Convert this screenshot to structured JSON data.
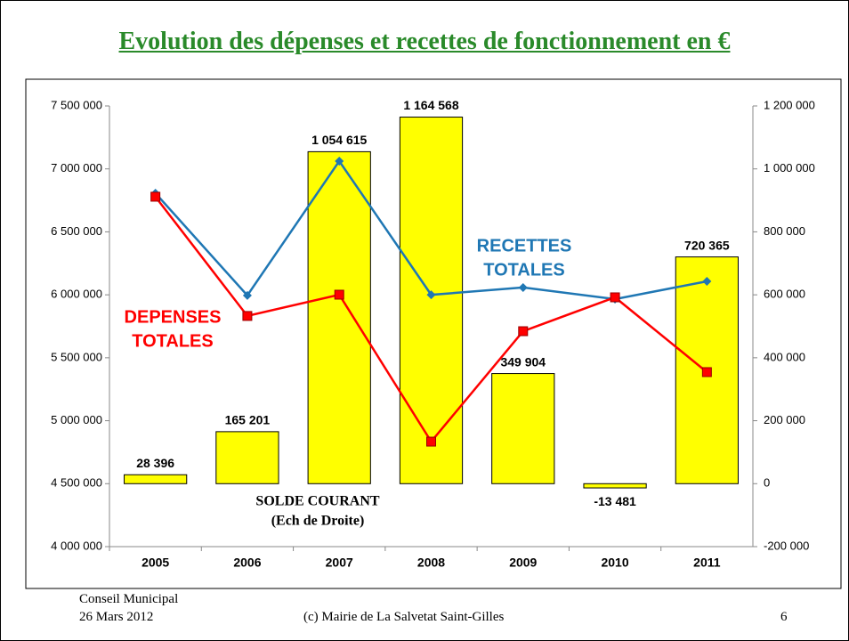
{
  "title": "Evolution des dépenses et recettes de fonctionnement en €",
  "chart_data": {
    "type": "bar-line",
    "categories": [
      "2005",
      "2006",
      "2007",
      "2008",
      "2009",
      "2010",
      "2011"
    ],
    "series": [
      {
        "name": "SOLDE COURANT",
        "type": "bar",
        "axis": "y2",
        "color": "#ffff00",
        "values": [
          28396,
          165201,
          1054615,
          1164568,
          349904,
          -13481,
          720365
        ],
        "value_labels": [
          "28 396",
          "165 201",
          "1 054 615",
          "1 164 568",
          "349 904",
          "-13 481",
          "720 365"
        ]
      },
      {
        "name": "RECETTES TOTALES",
        "type": "line",
        "axis": "y",
        "color": "#1f77b4",
        "marker": "diamond",
        "values": [
          6807000,
          5995000,
          7062000,
          6000000,
          6058000,
          5966000,
          6107000
        ]
      },
      {
        "name": "DEPENSES TOTALES",
        "type": "line",
        "axis": "y",
        "color": "#ff0000",
        "marker": "square",
        "values": [
          6779000,
          5832000,
          6001000,
          4834000,
          5711000,
          5980000,
          5386000
        ]
      }
    ],
    "ylim": [
      4000000,
      7500000
    ],
    "yticks": [
      {
        "value": 4000000,
        "label": "4 000 000"
      },
      {
        "value": 4500000,
        "label": "4 500 000"
      },
      {
        "value": 5000000,
        "label": "5 000 000"
      },
      {
        "value": 5500000,
        "label": "5 500 000"
      },
      {
        "value": 6000000,
        "label": "6 000 000"
      },
      {
        "value": 6500000,
        "label": "6 500 000"
      },
      {
        "value": 7000000,
        "label": "7 000 000"
      },
      {
        "value": 7500000,
        "label": "7 500 000"
      }
    ],
    "y2lim": [
      -200000,
      1200000
    ],
    "y2ticks": [
      {
        "value": -200000,
        "label": "-200 000"
      },
      0,
      {
        "value": 200000,
        "label": "200 000"
      },
      {
        "value": 400000,
        "label": "400 000"
      },
      {
        "value": 600000,
        "label": "600 000"
      },
      {
        "value": 800000,
        "label": "800 000"
      },
      {
        "value": 1000000,
        "label": "1 000 000"
      },
      {
        "value": 1200000,
        "label": "1 200 000"
      }
    ],
    "grid": false,
    "annotations": [
      {
        "lines": [
          "DEPENSES",
          "TOTALES"
        ],
        "color": "#ff0000"
      },
      {
        "lines": [
          "RECETTES",
          "TOTALES"
        ],
        "color": "#1f77b4"
      },
      {
        "lines": [
          "SOLDE COURANT",
          "(Ech de Droite)"
        ],
        "color": "#000000"
      }
    ]
  },
  "footer": {
    "left": [
      "Conseil Municipal",
      "26 Mars 2012"
    ],
    "center": "(c) Mairie de La Salvetat Saint-Gilles",
    "page": "6"
  }
}
